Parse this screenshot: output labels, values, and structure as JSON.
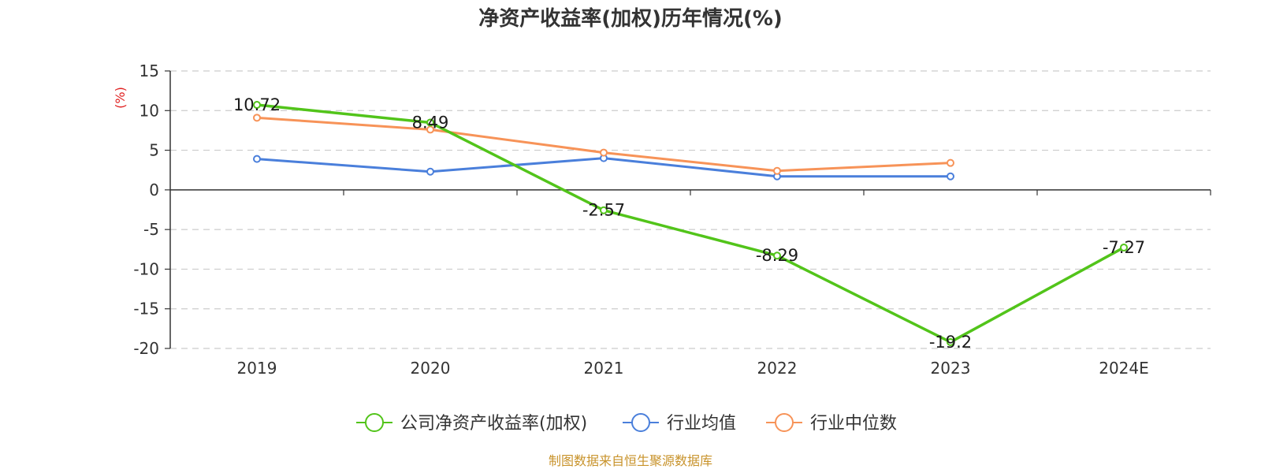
{
  "chart_data": {
    "type": "line",
    "title": "净资产收益率(加权)历年情况(%)",
    "ylabel": "(%)",
    "categories": [
      "2019",
      "2020",
      "2021",
      "2022",
      "2023",
      "2024E"
    ],
    "ylim": [
      -20,
      15
    ],
    "yticks": [
      "15",
      "10",
      "5",
      "0",
      "-5",
      "-10",
      "-15",
      "-20"
    ],
    "grid": true,
    "legend_position": "bottom",
    "series": [
      {
        "name": "公司净资产收益率(加权)",
        "color": "#52c41a",
        "values": [
          10.72,
          8.49,
          -2.57,
          -8.29,
          -19.2,
          -7.27
        ],
        "labels": [
          "10.72",
          "8.49",
          "-2.57",
          "-8.29",
          "-19.2",
          "-7.27"
        ]
      },
      {
        "name": "行业均值",
        "color": "#4a7fdb",
        "values": [
          3.9,
          2.3,
          4.0,
          1.7,
          1.7,
          null
        ]
      },
      {
        "name": "行业中位数",
        "color": "#f79358",
        "values": [
          9.1,
          7.6,
          4.7,
          2.4,
          3.4,
          null
        ]
      }
    ],
    "source": "制图数据来自恒生聚源数据库"
  }
}
